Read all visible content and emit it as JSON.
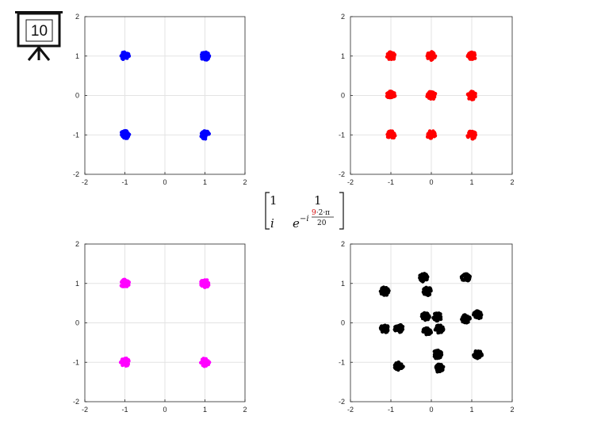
{
  "slide": {
    "number": "10"
  },
  "matrix": {
    "r1c1": "1",
    "r1c2": "1",
    "r2c1": "i",
    "r2c2_base": "e",
    "exp_prefix": "−i",
    "exp_num_highlight": "9",
    "exp_num_rest": "·2·π",
    "exp_den": "20",
    "highlight_color": "#d00000"
  },
  "chart_data": [
    {
      "type": "scatter",
      "title": "",
      "xlim": [
        -2,
        2
      ],
      "ylim": [
        -2,
        2
      ],
      "xticks": [
        "-2",
        "-1",
        "0",
        "1",
        "2"
      ],
      "yticks": [
        "2",
        "1",
        "0",
        "-1",
        "-2"
      ],
      "grid": true,
      "color": "#0000ff",
      "series": [
        {
          "points": [
            [
              -1,
              1
            ],
            [
              1,
              1
            ],
            [
              -1,
              -1
            ],
            [
              1,
              -1
            ]
          ]
        }
      ]
    },
    {
      "type": "scatter",
      "title": "",
      "xlim": [
        -2,
        2
      ],
      "ylim": [
        -2,
        2
      ],
      "xticks": [
        "-2",
        "-1",
        "0",
        "1",
        "2"
      ],
      "yticks": [
        "2",
        "1",
        "0",
        "-1",
        "-2"
      ],
      "grid": true,
      "color": "#ff0000",
      "series": [
        {
          "points": [
            [
              -1,
              1
            ],
            [
              0,
              1
            ],
            [
              1,
              1
            ],
            [
              -1,
              0
            ],
            [
              0,
              0
            ],
            [
              1,
              0
            ],
            [
              -1,
              -1
            ],
            [
              0,
              -1
            ],
            [
              1,
              -1
            ]
          ]
        }
      ]
    },
    {
      "type": "scatter",
      "title": "",
      "xlim": [
        -2,
        2
      ],
      "ylim": [
        -2,
        2
      ],
      "xticks": [
        "-2",
        "-1",
        "0",
        "1",
        "2"
      ],
      "yticks": [
        "2",
        "1",
        "0",
        "-1",
        "-2"
      ],
      "grid": true,
      "color": "#ff00ff",
      "series": [
        {
          "points": [
            [
              -1,
              1
            ],
            [
              1,
              1
            ],
            [
              -1,
              -1
            ],
            [
              1,
              -1
            ]
          ]
        }
      ]
    },
    {
      "type": "scatter",
      "title": "",
      "xlim": [
        -2,
        2
      ],
      "ylim": [
        -2,
        2
      ],
      "xticks": [
        "-2",
        "-1",
        "0",
        "1",
        "2"
      ],
      "yticks": [
        "2",
        "1",
        "0",
        "-1",
        "-2"
      ],
      "grid": true,
      "color": "#000000",
      "series": [
        {
          "points": [
            [
              -0.2,
              1.15
            ],
            [
              0.85,
              1.15
            ],
            [
              -1.15,
              0.8
            ],
            [
              -0.1,
              0.8
            ],
            [
              -0.15,
              0.15
            ],
            [
              0.15,
              0.15
            ],
            [
              0.85,
              0.1
            ],
            [
              1.15,
              0.2
            ],
            [
              -1.15,
              -0.15
            ],
            [
              -0.8,
              -0.15
            ],
            [
              -0.1,
              -0.2
            ],
            [
              0.2,
              -0.15
            ],
            [
              0.15,
              -0.8
            ],
            [
              1.15,
              -0.8
            ],
            [
              -0.8,
              -1.1
            ],
            [
              0.2,
              -1.15
            ]
          ]
        }
      ]
    }
  ]
}
